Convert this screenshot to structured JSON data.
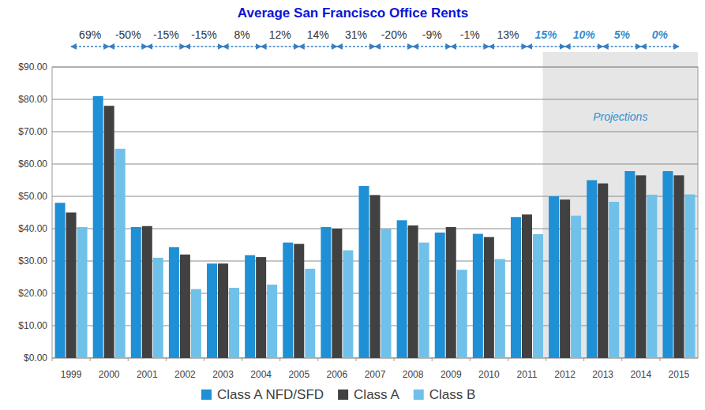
{
  "chart_data": {
    "type": "bar",
    "title": "Average San Francisco Office Rents",
    "categories": [
      "1999",
      "2000",
      "2001",
      "2002",
      "2003",
      "2004",
      "2005",
      "2006",
      "2007",
      "2008",
      "2009",
      "2010",
      "2011",
      "2012",
      "2013",
      "2014",
      "2015"
    ],
    "series": [
      {
        "name": "Class A NFD/SFD",
        "color": "#1f8fd6",
        "values": [
          48,
          81,
          40.5,
          34.3,
          29.2,
          31.8,
          35.7,
          40.5,
          53.2,
          42.6,
          38.8,
          38.4,
          43.6,
          50,
          55,
          57.8,
          57.8
        ]
      },
      {
        "name": "Class A",
        "color": "#414141",
        "values": [
          45,
          78,
          40.8,
          32,
          29.2,
          31.2,
          35.3,
          40,
          50.4,
          41,
          40.5,
          37.4,
          44.4,
          49,
          54,
          56.5,
          56.5
        ]
      },
      {
        "name": "Class B",
        "color": "#6fc1ea",
        "values": [
          40.5,
          64.7,
          31,
          21.3,
          21.7,
          22.7,
          27.6,
          33.3,
          40,
          35.7,
          27.3,
          30.6,
          38.3,
          44,
          48.3,
          50.5,
          50.6
        ]
      }
    ],
    "ylim": [
      0,
      90
    ],
    "yticks": [
      {
        "value": 0,
        "label": "$0.00"
      },
      {
        "value": 10,
        "label": "$10.00"
      },
      {
        "value": 20,
        "label": "$20.00"
      },
      {
        "value": 30,
        "label": "$30.00"
      },
      {
        "value": 40,
        "label": "$40.00"
      },
      {
        "value": 50,
        "label": "$50.00"
      },
      {
        "value": 60,
        "label": "$60.00"
      },
      {
        "value": 70,
        "label": "$70.00"
      },
      {
        "value": 80,
        "label": "$80.00"
      },
      {
        "value": 90,
        "label": "$90.00"
      }
    ],
    "grid": true,
    "legend": "bottom",
    "annotations": [
      {
        "text": "69%",
        "from": "1999",
        "to": "2000",
        "projected": false
      },
      {
        "text": "-50%",
        "from": "2000",
        "to": "2001",
        "projected": false
      },
      {
        "text": "-15%",
        "from": "2001",
        "to": "2002",
        "projected": false
      },
      {
        "text": "-15%",
        "from": "2002",
        "to": "2003",
        "projected": false
      },
      {
        "text": "8%",
        "from": "2003",
        "to": "2004",
        "projected": false
      },
      {
        "text": "12%",
        "from": "2004",
        "to": "2005",
        "projected": false
      },
      {
        "text": "14%",
        "from": "2005",
        "to": "2006",
        "projected": false
      },
      {
        "text": "31%",
        "from": "2006",
        "to": "2007",
        "projected": false
      },
      {
        "text": "-20%",
        "from": "2007",
        "to": "2008",
        "projected": false
      },
      {
        "text": "-9%",
        "from": "2008",
        "to": "2009",
        "projected": false
      },
      {
        "text": "-1%",
        "from": "2009",
        "to": "2010",
        "projected": false
      },
      {
        "text": "13%",
        "from": "2010",
        "to": "2011",
        "projected": false
      },
      {
        "text": "15%",
        "from": "2011",
        "to": "2012",
        "projected": true
      },
      {
        "text": "10%",
        "from": "2012",
        "to": "2013",
        "projected": true
      },
      {
        "text": "5%",
        "from": "2013",
        "to": "2014",
        "projected": true
      },
      {
        "text": "0%",
        "from": "2014",
        "to": "2015",
        "projected": true
      }
    ],
    "shaded_region": {
      "label": "Projections",
      "from": "2012",
      "to": "2015"
    }
  }
}
